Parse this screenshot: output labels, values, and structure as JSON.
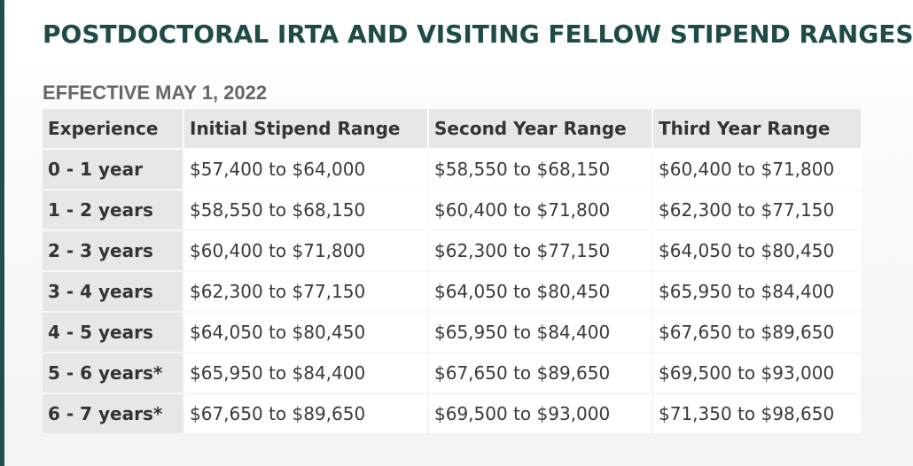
{
  "title": "POSTDOCTORAL IRTA AND VISITING FELLOW STIPEND RANGES",
  "subtitle": "EFFECTIVE MAY 1, 2022",
  "table": {
    "headers": [
      "Experience",
      "Initial Stipend Range",
      "Second Year Range",
      "Third Year Range"
    ],
    "rows": [
      {
        "experience": "0 - 1 year",
        "initial": "$57,400 to $64,000",
        "second": "$58,550 to $68,150",
        "third": "$60,400 to $71,800"
      },
      {
        "experience": "1 - 2 years",
        "initial": "$58,550 to $68,150",
        "second": "$60,400 to $71,800",
        "third": "$62,300 to $77,150"
      },
      {
        "experience": "2 - 3 years",
        "initial": "$60,400 to $71,800",
        "second": "$62,300 to $77,150",
        "third": "$64,050 to $80,450"
      },
      {
        "experience": "3 - 4 years",
        "initial": "$62,300 to $77,150",
        "second": "$64,050 to $80,450",
        "third": "$65,950 to $84,400"
      },
      {
        "experience": "4 - 5 years",
        "initial": "$64,050 to $80,450",
        "second": "$65,950 to $84,400",
        "third": "$67,650 to $89,650"
      },
      {
        "experience": "5 - 6 years*",
        "initial": "$65,950 to $84,400",
        "second": "$67,650 to $89,650",
        "third": "$69,500 to $93,000"
      },
      {
        "experience": "6 - 7 years*",
        "initial": "$67,650 to $89,650",
        "second": "$69,500 to $93,000",
        "third": "$71,350 to $98,650"
      }
    ]
  },
  "colors": {
    "title": "#1e4a47",
    "accent_bar": "#1f4e4f",
    "subtitle": "#666666",
    "header_cell": "#e7e7e7",
    "value_cell": "#ffffff"
  }
}
